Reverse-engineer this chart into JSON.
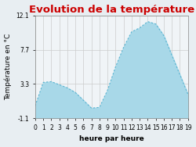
{
  "title": "Evolution de la température",
  "xlabel": "heure par heure",
  "ylabel": "Température en °C",
  "hours": [
    0,
    1,
    2,
    3,
    4,
    5,
    6,
    7,
    8,
    9,
    10,
    11,
    12,
    13,
    14,
    15,
    16,
    17,
    18,
    19
  ],
  "temperatures": [
    0.5,
    3.5,
    3.6,
    3.2,
    2.8,
    2.2,
    1.2,
    0.2,
    0.3,
    2.5,
    5.5,
    8.0,
    10.0,
    10.5,
    11.3,
    11.0,
    9.5,
    7.0,
    4.5,
    2.0
  ],
  "ylim": [
    -1.1,
    12.1
  ],
  "xlim": [
    0,
    19
  ],
  "yticks": [
    -1.1,
    3.3,
    7.7,
    12.1
  ],
  "xticks": [
    0,
    1,
    2,
    3,
    4,
    5,
    6,
    7,
    8,
    9,
    10,
    11,
    12,
    13,
    14,
    15,
    16,
    17,
    18,
    19
  ],
  "fill_color": "#a8d8e8",
  "line_color": "#5ab4d1",
  "title_color": "#cc0000",
  "bg_color": "#e8eef2",
  "plot_bg_color": "#f0f4f7",
  "grid_color": "#cccccc",
  "title_fontsize": 9.5,
  "label_fontsize": 6.5,
  "tick_fontsize": 5.5
}
